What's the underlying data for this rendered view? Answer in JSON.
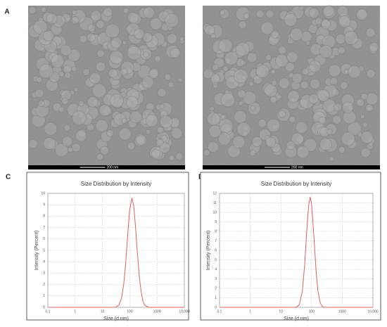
{
  "images": [
    {
      "panel": "A",
      "scale_bar": "200 nm"
    },
    {
      "panel": "B",
      "scale_bar": "200 nm"
    }
  ],
  "chart_data": [
    {
      "type": "line",
      "panel": "C",
      "title": "Size Distribution by Intensity",
      "x_label": "Size (d.nm)",
      "y_label": "Intensity (Percent)",
      "log_x": true,
      "grid": true,
      "color": "#e06060",
      "x": [
        0.1,
        30,
        40,
        50,
        60,
        70,
        80,
        90,
        100,
        120,
        140,
        160,
        190,
        220,
        260,
        300,
        350,
        400,
        500,
        10000
      ],
      "values": [
        0,
        0,
        0.2,
        0.8,
        2.0,
        3.7,
        5.6,
        7.3,
        8.6,
        9.6,
        8.9,
        7.3,
        4.8,
        2.9,
        1.4,
        0.6,
        0.2,
        0.1,
        0,
        0
      ],
      "xlim": [
        0.1,
        10000
      ],
      "xticks": [
        0.1,
        1,
        10,
        100,
        1000,
        {
          "value": 10000,
          "label": "10,000"
        }
      ],
      "ylim": [
        0,
        10
      ],
      "yticks": [
        0,
        1,
        2,
        3,
        4,
        5,
        6,
        7,
        8,
        9,
        10
      ]
    },
    {
      "type": "line",
      "panel": "D",
      "title": "Size Distribution by Intensity",
      "x_label": "Size (d.nm)",
      "y_label": "Intensity (Percent)",
      "log_x": true,
      "grid": true,
      "color": "#e06060",
      "x": [
        0.1,
        30,
        35,
        40,
        50,
        60,
        70,
        80,
        90,
        100,
        120,
        140,
        160,
        190,
        220,
        260,
        10000
      ],
      "values": [
        0,
        0,
        0.1,
        0.3,
        1.7,
        4.6,
        8.2,
        10.7,
        11.6,
        10.9,
        7.3,
        3.9,
        1.8,
        0.5,
        0.1,
        0,
        0
      ],
      "xlim": [
        0.1,
        10000
      ],
      "xticks": [
        0.1,
        1,
        10,
        100,
        1000,
        {
          "value": 10000,
          "label": "10,000"
        }
      ],
      "ylim": [
        0,
        12
      ],
      "yticks": [
        0,
        1,
        2,
        3,
        4,
        5,
        6,
        7,
        8,
        9,
        10,
        11,
        12
      ]
    }
  ]
}
